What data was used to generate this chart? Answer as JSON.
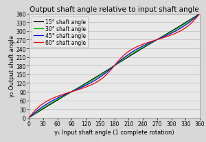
{
  "title": "Output shaft angle relative to input shaft angle",
  "xlabel": "γ₁ Input shaft angle (1 complete rotation)",
  "ylabel": "γ₂ Output shaft angle",
  "xlim": [
    0,
    360
  ],
  "ylim": [
    0,
    360
  ],
  "xticks": [
    0,
    30,
    60,
    90,
    120,
    150,
    180,
    210,
    240,
    270,
    300,
    330,
    360
  ],
  "yticks": [
    0,
    30,
    60,
    90,
    120,
    150,
    180,
    210,
    240,
    270,
    300,
    330,
    360
  ],
  "shaft_angles_deg": [
    15,
    30,
    45,
    60
  ],
  "line_colors": [
    "#000000",
    "#00bb00",
    "#0000ee",
    "#ee0000"
  ],
  "line_labels": [
    "15° shaft angle",
    "30° shaft angle",
    "45° shaft angle",
    "60° shaft angle"
  ],
  "background_color": "#d8d8d8",
  "plot_bg_color": "#e8e8e8",
  "grid_color": "#bbbbbb",
  "title_fontsize": 7.5,
  "axis_label_fontsize": 6.0,
  "tick_fontsize": 5.5,
  "legend_fontsize": 5.5,
  "linewidth": 0.9
}
